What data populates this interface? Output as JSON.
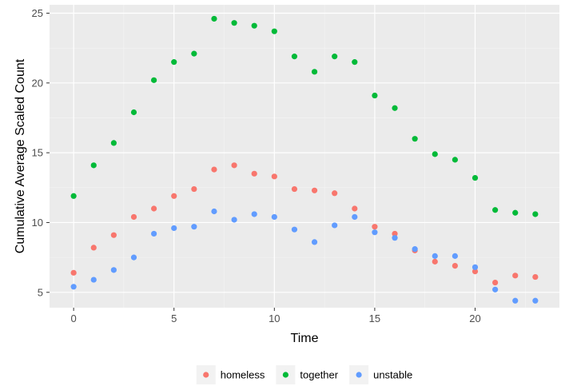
{
  "chart_data": {
    "type": "scatter",
    "title": "",
    "xlabel": "Time",
    "ylabel": "Cumulative Average Scaled Count",
    "xlim": [
      -1.2,
      24.2
    ],
    "ylim": [
      3.9,
      25.6
    ],
    "x_ticks": [
      0,
      5,
      10,
      15,
      20
    ],
    "y_ticks": [
      5,
      10,
      15,
      20,
      25
    ],
    "grid": true,
    "legend_position": "bottom",
    "x": [
      0,
      1,
      2,
      3,
      4,
      5,
      6,
      7,
      8,
      9,
      10,
      11,
      12,
      13,
      14,
      15,
      16,
      17,
      18,
      19,
      20,
      21,
      22,
      23
    ],
    "series": [
      {
        "name": "homeless",
        "color": "#F8766D",
        "values": [
          6.4,
          8.2,
          9.1,
          10.4,
          11.0,
          11.9,
          12.4,
          13.8,
          14.1,
          13.5,
          13.3,
          12.4,
          12.3,
          12.1,
          11.0,
          9.7,
          9.2,
          8.0,
          7.2,
          6.9,
          6.5,
          5.7,
          6.2,
          6.1
        ]
      },
      {
        "name": "together",
        "color": "#00BA38",
        "values": [
          11.9,
          14.1,
          15.7,
          17.9,
          20.2,
          21.5,
          22.1,
          24.6,
          24.3,
          24.1,
          23.7,
          21.9,
          20.8,
          21.9,
          21.5,
          19.1,
          18.2,
          16.0,
          14.9,
          14.5,
          13.2,
          10.9,
          10.7,
          10.6
        ]
      },
      {
        "name": "unstable",
        "color": "#619CFF",
        "values": [
          5.4,
          5.9,
          6.6,
          7.5,
          9.2,
          9.6,
          9.7,
          10.8,
          10.2,
          10.6,
          10.4,
          9.5,
          8.6,
          9.8,
          10.4,
          9.3,
          8.9,
          8.1,
          7.6,
          7.6,
          6.8,
          5.2,
          4.4,
          4.4
        ]
      }
    ]
  }
}
